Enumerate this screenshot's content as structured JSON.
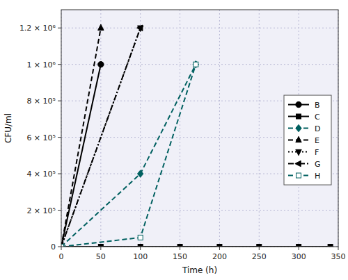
{
  "chart_data": {
    "type": "line",
    "x_label": "Time (h)",
    "y_label": "CFU/ml",
    "xlim": [
      0,
      350
    ],
    "ylim": [
      0,
      1300000
    ],
    "xticks": [
      0,
      50,
      100,
      150,
      200,
      250,
      300,
      350
    ],
    "yticks": [
      0,
      {
        "value": 200000,
        "label": "2 × 10⁵"
      },
      {
        "value": 400000,
        "label": "4 × 10⁵"
      },
      {
        "value": 600000,
        "label": "6 × 10⁵"
      },
      {
        "value": 800000,
        "label": "8 × 10⁵"
      },
      {
        "value": 1000000,
        "label": "1 × 10⁶"
      },
      {
        "value": 1200000,
        "label": "1.2 × 10⁶"
      }
    ],
    "grid": true,
    "legend": "right",
    "series": [
      {
        "name": "B",
        "color": "black",
        "marker": "circle",
        "line_style": "solid",
        "x": [
          0,
          50
        ],
        "values": [
          0,
          1000000
        ]
      },
      {
        "name": "C",
        "color": "black",
        "marker": "square",
        "line_style": "solid",
        "x": [
          0,
          50,
          100,
          150,
          200,
          250,
          300,
          340
        ],
        "values": [
          0,
          0,
          0,
          0,
          0,
          0,
          0,
          0
        ]
      },
      {
        "name": "D",
        "color": "#006060",
        "marker": "diamond",
        "line_style": "dashed",
        "x": [
          0,
          100,
          170
        ],
        "values": [
          0,
          400000,
          1000000
        ]
      },
      {
        "name": "E",
        "color": "black",
        "marker": "triangle-up",
        "line_style": "dashed",
        "x": [
          0,
          50
        ],
        "values": [
          0,
          1200000
        ]
      },
      {
        "name": "F",
        "color": "black",
        "marker": "triangle-down",
        "line_style": "dotted",
        "x": [
          0,
          100
        ],
        "values": [
          0,
          1200000
        ]
      },
      {
        "name": "G",
        "color": "black",
        "marker": "triangle-left",
        "line_style": "dashdot",
        "x": [
          0,
          100
        ],
        "values": [
          0,
          1200000
        ]
      },
      {
        "name": "H",
        "color": "#006060",
        "marker": "open-square",
        "line_style": "dashed",
        "x": [
          0,
          100,
          170
        ],
        "values": [
          0,
          50000,
          1000000
        ]
      }
    ]
  }
}
